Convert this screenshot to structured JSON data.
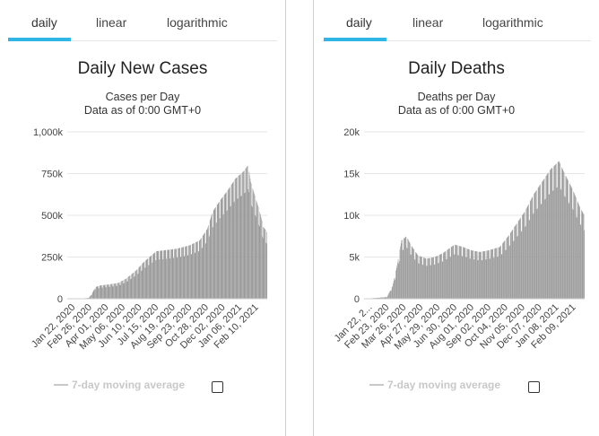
{
  "tabs": [
    "daily",
    "linear",
    "logarithmic"
  ],
  "legend_label": "7-day moving average",
  "colors": {
    "bar": "#9a9a9a",
    "accent": "#2fb5e6",
    "grid": "#e6e6e6"
  },
  "chart_data": [
    {
      "type": "bar",
      "title": "Daily New Cases",
      "subtitle_1": "Cases per Day",
      "subtitle_2": "Data as of 0:00 GMT+0",
      "ylim": [
        0,
        1000000
      ],
      "yticks": [
        0,
        250000,
        500000,
        750000,
        1000000
      ],
      "ytick_labels": [
        "0",
        "250k",
        "500k",
        "750k",
        "1,000k"
      ],
      "xtick_labels": [
        "Jan 22, 2020",
        "Feb 26, 2020",
        "Apr 01, 2020",
        "May 06, 2020",
        "Jun 10, 2020",
        "Jul 15, 2020",
        "Aug 19, 2020",
        "Sep 23, 2020",
        "Oct 28, 2020",
        "Dec 02, 2020",
        "Jan 06, 2021",
        "Feb 10, 2021"
      ],
      "grid": true,
      "series": [
        {
          "key_points": [
            [
              0,
              0
            ],
            [
              30,
              2000
            ],
            [
              42,
              5000
            ],
            [
              48,
              30000
            ],
            [
              55,
              70000
            ],
            [
              65,
              80000
            ],
            [
              80,
              85000
            ],
            [
              100,
              95000
            ],
            [
              115,
              120000
            ],
            [
              135,
              170000
            ],
            [
              150,
              220000
            ],
            [
              165,
              260000
            ],
            [
              175,
              285000
            ],
            [
              190,
              290000
            ],
            [
              215,
              300000
            ],
            [
              240,
              320000
            ],
            [
              260,
              350000
            ],
            [
              275,
              420000
            ],
            [
              285,
              520000
            ],
            [
              300,
              590000
            ],
            [
              315,
              650000
            ],
            [
              330,
              720000
            ],
            [
              345,
              760000
            ],
            [
              355,
              800000
            ],
            [
              360,
              700000
            ],
            [
              368,
              620000
            ],
            [
              378,
              520000
            ],
            [
              385,
              430000
            ],
            [
              392,
              400000
            ]
          ]
        }
      ]
    },
    {
      "type": "bar",
      "title": "Daily Deaths",
      "subtitle_1": "Deaths per Day",
      "subtitle_2": "Data as of 0:00 GMT+0",
      "ylim": [
        0,
        20000
      ],
      "yticks": [
        0,
        5000,
        10000,
        15000,
        20000
      ],
      "ytick_labels": [
        "0",
        "5k",
        "10k",
        "15k",
        "20k"
      ],
      "xtick_labels": [
        "Jan 22, 2...",
        "Feb 23, 2020",
        "Mar 26, 2020",
        "Apr 27, 2020",
        "May 29, 2020",
        "Jun 30, 2020",
        "Aug 01, 2020",
        "Sep 02, 2020",
        "Oct 04, 2020",
        "Nov 05, 2020",
        "Dec 07, 2020",
        "Jan 08, 2021",
        "Feb 09, 2021"
      ],
      "grid": true,
      "series": [
        {
          "key_points": [
            [
              0,
              0
            ],
            [
              40,
              200
            ],
            [
              50,
              1500
            ],
            [
              58,
              4000
            ],
            [
              66,
              7000
            ],
            [
              75,
              7500
            ],
            [
              82,
              6500
            ],
            [
              95,
              5200
            ],
            [
              110,
              4800
            ],
            [
              125,
              5000
            ],
            [
              140,
              5500
            ],
            [
              160,
              6500
            ],
            [
              175,
              6200
            ],
            [
              190,
              5800
            ],
            [
              205,
              5600
            ],
            [
              220,
              5800
            ],
            [
              240,
              6200
            ],
            [
              255,
              7500
            ],
            [
              270,
              9000
            ],
            [
              285,
              10500
            ],
            [
              300,
              12500
            ],
            [
              315,
              14000
            ],
            [
              330,
              15500
            ],
            [
              345,
              16500
            ],
            [
              355,
              15000
            ],
            [
              370,
              13000
            ],
            [
              382,
              11000
            ],
            [
              390,
              10000
            ]
          ]
        }
      ]
    }
  ]
}
